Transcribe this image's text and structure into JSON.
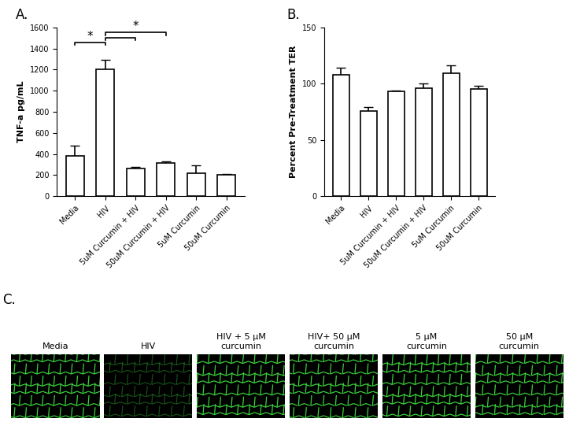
{
  "chart_data": [
    {
      "type": "bar",
      "title": "A.",
      "categories": [
        "Media",
        "HIV",
        "5uM Curcumin + HIV",
        "50uM Curcumin + HIV",
        "5uM Curcumin",
        "50uM Curcumin"
      ],
      "values": [
        380,
        1200,
        260,
        315,
        215,
        200
      ],
      "errors": [
        100,
        95,
        20,
        15,
        80,
        8
      ],
      "y_label": "TNF-a pg/mL",
      "ylim": [
        0,
        1600
      ],
      "yticks": [
        0,
        200,
        400,
        600,
        800,
        1000,
        1200,
        1400,
        1600
      ],
      "color": "#ffffff",
      "brackets": [
        {
          "from": 0,
          "to": 1,
          "label": "*"
        },
        {
          "from": 1,
          "to": 2
        },
        {
          "from": 1,
          "to": 3,
          "label": "*"
        }
      ]
    },
    {
      "type": "bar",
      "title": "B.",
      "categories": [
        "Media",
        "HIV",
        "5uM Curcumin + HIV",
        "50uM Curcumin + HIV",
        "5uM Curcumin",
        "50uM Curcumin"
      ],
      "values": [
        108,
        76,
        93,
        96,
        109,
        95
      ],
      "errors": [
        6,
        3,
        1,
        4,
        7,
        3
      ],
      "y_label": "Percent Pre-Treatment TER",
      "ylim": [
        0,
        150
      ],
      "yticks": [
        0,
        50,
        100,
        150
      ],
      "color": "#ffffff"
    }
  ],
  "panel_c": {
    "label": "C.",
    "images": [
      "Media",
      "HIV",
      "HIV + 5 μM\ncurcumin",
      "HIV+ 50 μM\ncurcumin",
      "5 μM\ncurcumin",
      "50 μM\ncurcumin"
    ]
  }
}
